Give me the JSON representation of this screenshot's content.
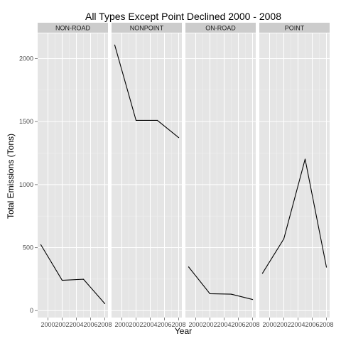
{
  "chart_data": {
    "type": "line",
    "title": "All Types Except Point Declined 2000 - 2008",
    "xlabel": "Year",
    "ylabel": "Total Emissions (Tons)",
    "x": [
      1999,
      2002,
      2005,
      2008
    ],
    "x_ticks": [
      2000,
      2002,
      2004,
      2006,
      2008
    ],
    "x_tick_labels": [
      "2000",
      "2002",
      "2004",
      "2006",
      "2008"
    ],
    "xlim": [
      1998.55,
      2008.45
    ],
    "y_ticks": [
      0,
      500,
      1000,
      1500,
      2000
    ],
    "y_tick_labels": [
      "0",
      "500",
      "1000",
      "1500",
      "2000"
    ],
    "ylim": [
      -55,
      2200
    ],
    "grid": true,
    "panels": [
      {
        "name": "NON-ROAD",
        "values": [
          522.9,
          240.8,
          248.9,
          55.8
        ]
      },
      {
        "name": "NONPOINT",
        "values": [
          2107.6,
          1509.5,
          1509.5,
          1373.2
        ]
      },
      {
        "name": "ON-ROAD",
        "values": [
          346.8,
          134.3,
          130.4,
          88.3
        ]
      },
      {
        "name": "POINT",
        "values": [
          296.8,
          569.3,
          1202.5,
          344.98
        ]
      }
    ],
    "colors": {
      "panel_bg": "#e5e5e5",
      "strip_bg": "#cccccc",
      "grid_major": "#ffffff",
      "grid_minor": "#f2f2f2",
      "line": "#000000",
      "tick_text": "#4d4d4d"
    }
  }
}
